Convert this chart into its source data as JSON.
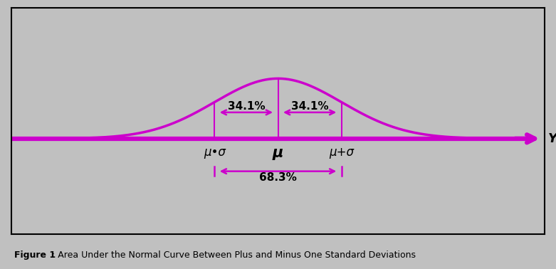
{
  "bg_color": "#c0c0c0",
  "curve_color": "#cc00cc",
  "text_color": "#000000",
  "caption_bold": "Figure 1",
  "caption_rest": ": Area Under the Normal Curve Between Plus and Minus One Standard Deviations",
  "label_341_left": "34.1%",
  "label_341_right": "34.1%",
  "label_683": "68.3%",
  "label_mu": "μ",
  "label_mu_minus": "μ•σ",
  "label_mu_plus": "μ+σ",
  "label_y": "Y",
  "mu": 0.0,
  "sigma": 1.0,
  "xlim": [
    -4.2,
    4.2
  ],
  "ylim": [
    -0.38,
    0.52
  ],
  "curve_lw": 2.5,
  "axis_lw": 4.5
}
